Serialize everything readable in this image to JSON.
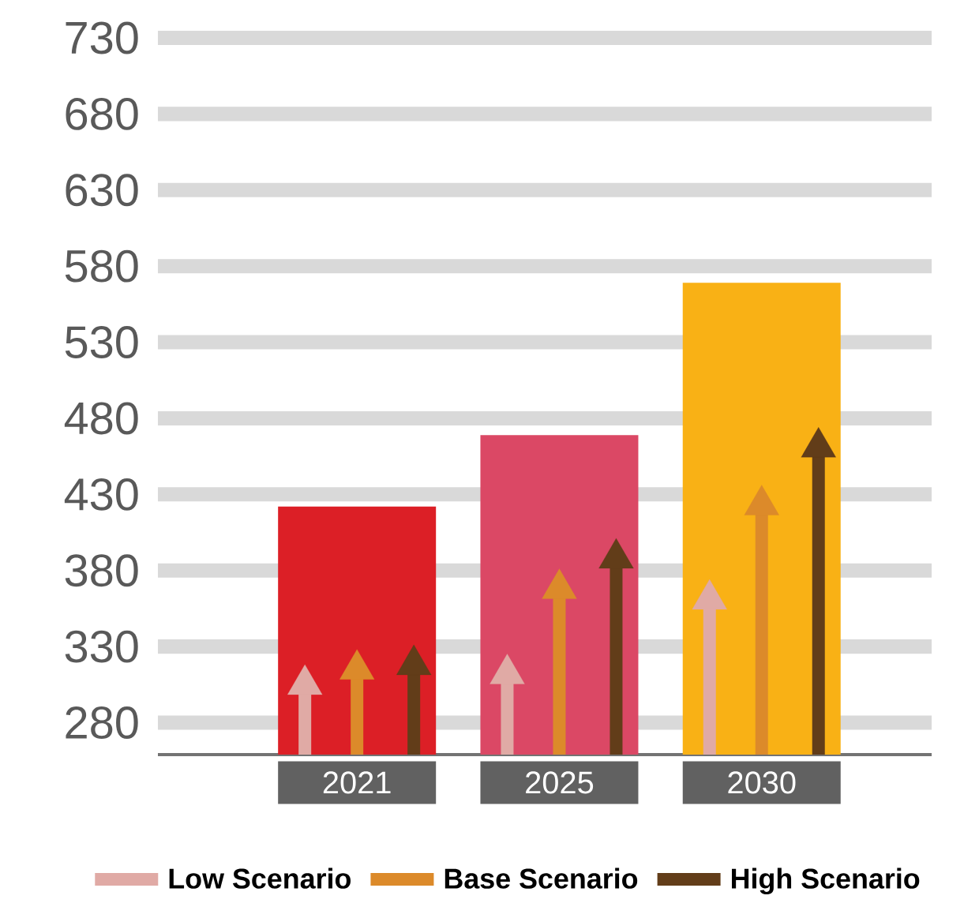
{
  "chart_data": {
    "type": "bar",
    "categories": [
      "2021",
      "2025",
      "2030"
    ],
    "series": [
      {
        "colors": [
          "#dc1f26",
          "#db4865",
          "#f9b115"
        ],
        "values": [
          422,
          469,
          569
        ]
      },
      {
        "name": "Low Scenario",
        "type": "lollipop",
        "marker": "triangle",
        "color": "#e0aaa5",
        "values": [
          305,
          312,
          361
        ]
      },
      {
        "name": "Base Scenario",
        "type": "lollipop",
        "marker": "triangle",
        "color": "#dc8a2a",
        "values": [
          315,
          368,
          423
        ]
      },
      {
        "name": "High Scenario",
        "type": "lollipop",
        "marker": "triangle",
        "color": "#623d19",
        "values": [
          318,
          388,
          461
        ]
      }
    ],
    "ylim": [
      259,
      730
    ],
    "yticks": [
      280,
      330,
      380,
      430,
      480,
      530,
      580,
      630,
      680,
      730
    ],
    "grid": "y",
    "legend": "bottom"
  }
}
